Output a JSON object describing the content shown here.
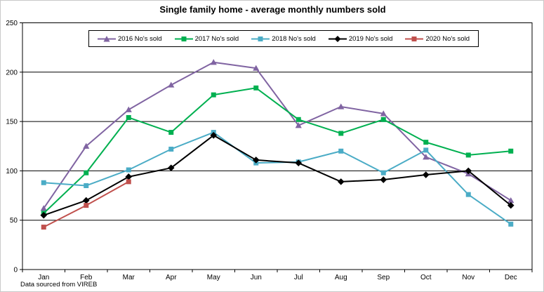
{
  "chart_data": {
    "type": "line",
    "title": "Single family home - average monthly numbers sold",
    "categories": [
      "Jan",
      "Feb",
      "Mar",
      "Apr",
      "May",
      "Jun",
      "Jul",
      "Aug",
      "Sep",
      "Oct",
      "Nov",
      "Dec"
    ],
    "xlabel": "",
    "ylabel": "",
    "ylim": [
      0,
      250
    ],
    "ytick_step": 50,
    "yticks": [
      0,
      50,
      100,
      150,
      200,
      250
    ],
    "grid": true,
    "legend_position": "top-center",
    "series": [
      {
        "name": "2016 No's sold",
        "color": "#8064A2",
        "marker": "triangle",
        "values": [
          62,
          125,
          162,
          187,
          210,
          204,
          146,
          165,
          158,
          114,
          97,
          70
        ]
      },
      {
        "name": "2017 No's sold",
        "color": "#00B050",
        "marker": "square",
        "values": [
          57,
          98,
          154,
          139,
          177,
          184,
          152,
          138,
          152,
          129,
          116,
          120
        ]
      },
      {
        "name": "2018 No's sold",
        "color": "#4BACC6",
        "marker": "square",
        "values": [
          88,
          85,
          101,
          122,
          139,
          108,
          109,
          120,
          98,
          121,
          76,
          46
        ]
      },
      {
        "name": "2019 No's sold",
        "color": "#000000",
        "marker": "diamond",
        "values": [
          55,
          70,
          94,
          103,
          136,
          111,
          108,
          89,
          91,
          96,
          100,
          65
        ]
      },
      {
        "name": "2020 No's sold",
        "color": "#C0504D",
        "marker": "square",
        "values": [
          43,
          65,
          89,
          null,
          null,
          null,
          null,
          null,
          null,
          null,
          null,
          null
        ]
      }
    ],
    "axis_color": "#000000",
    "gridline_color": "#000000",
    "plot_background": "#FFFFFF"
  },
  "footer": {
    "note": "Data sourced from VIREB"
  }
}
